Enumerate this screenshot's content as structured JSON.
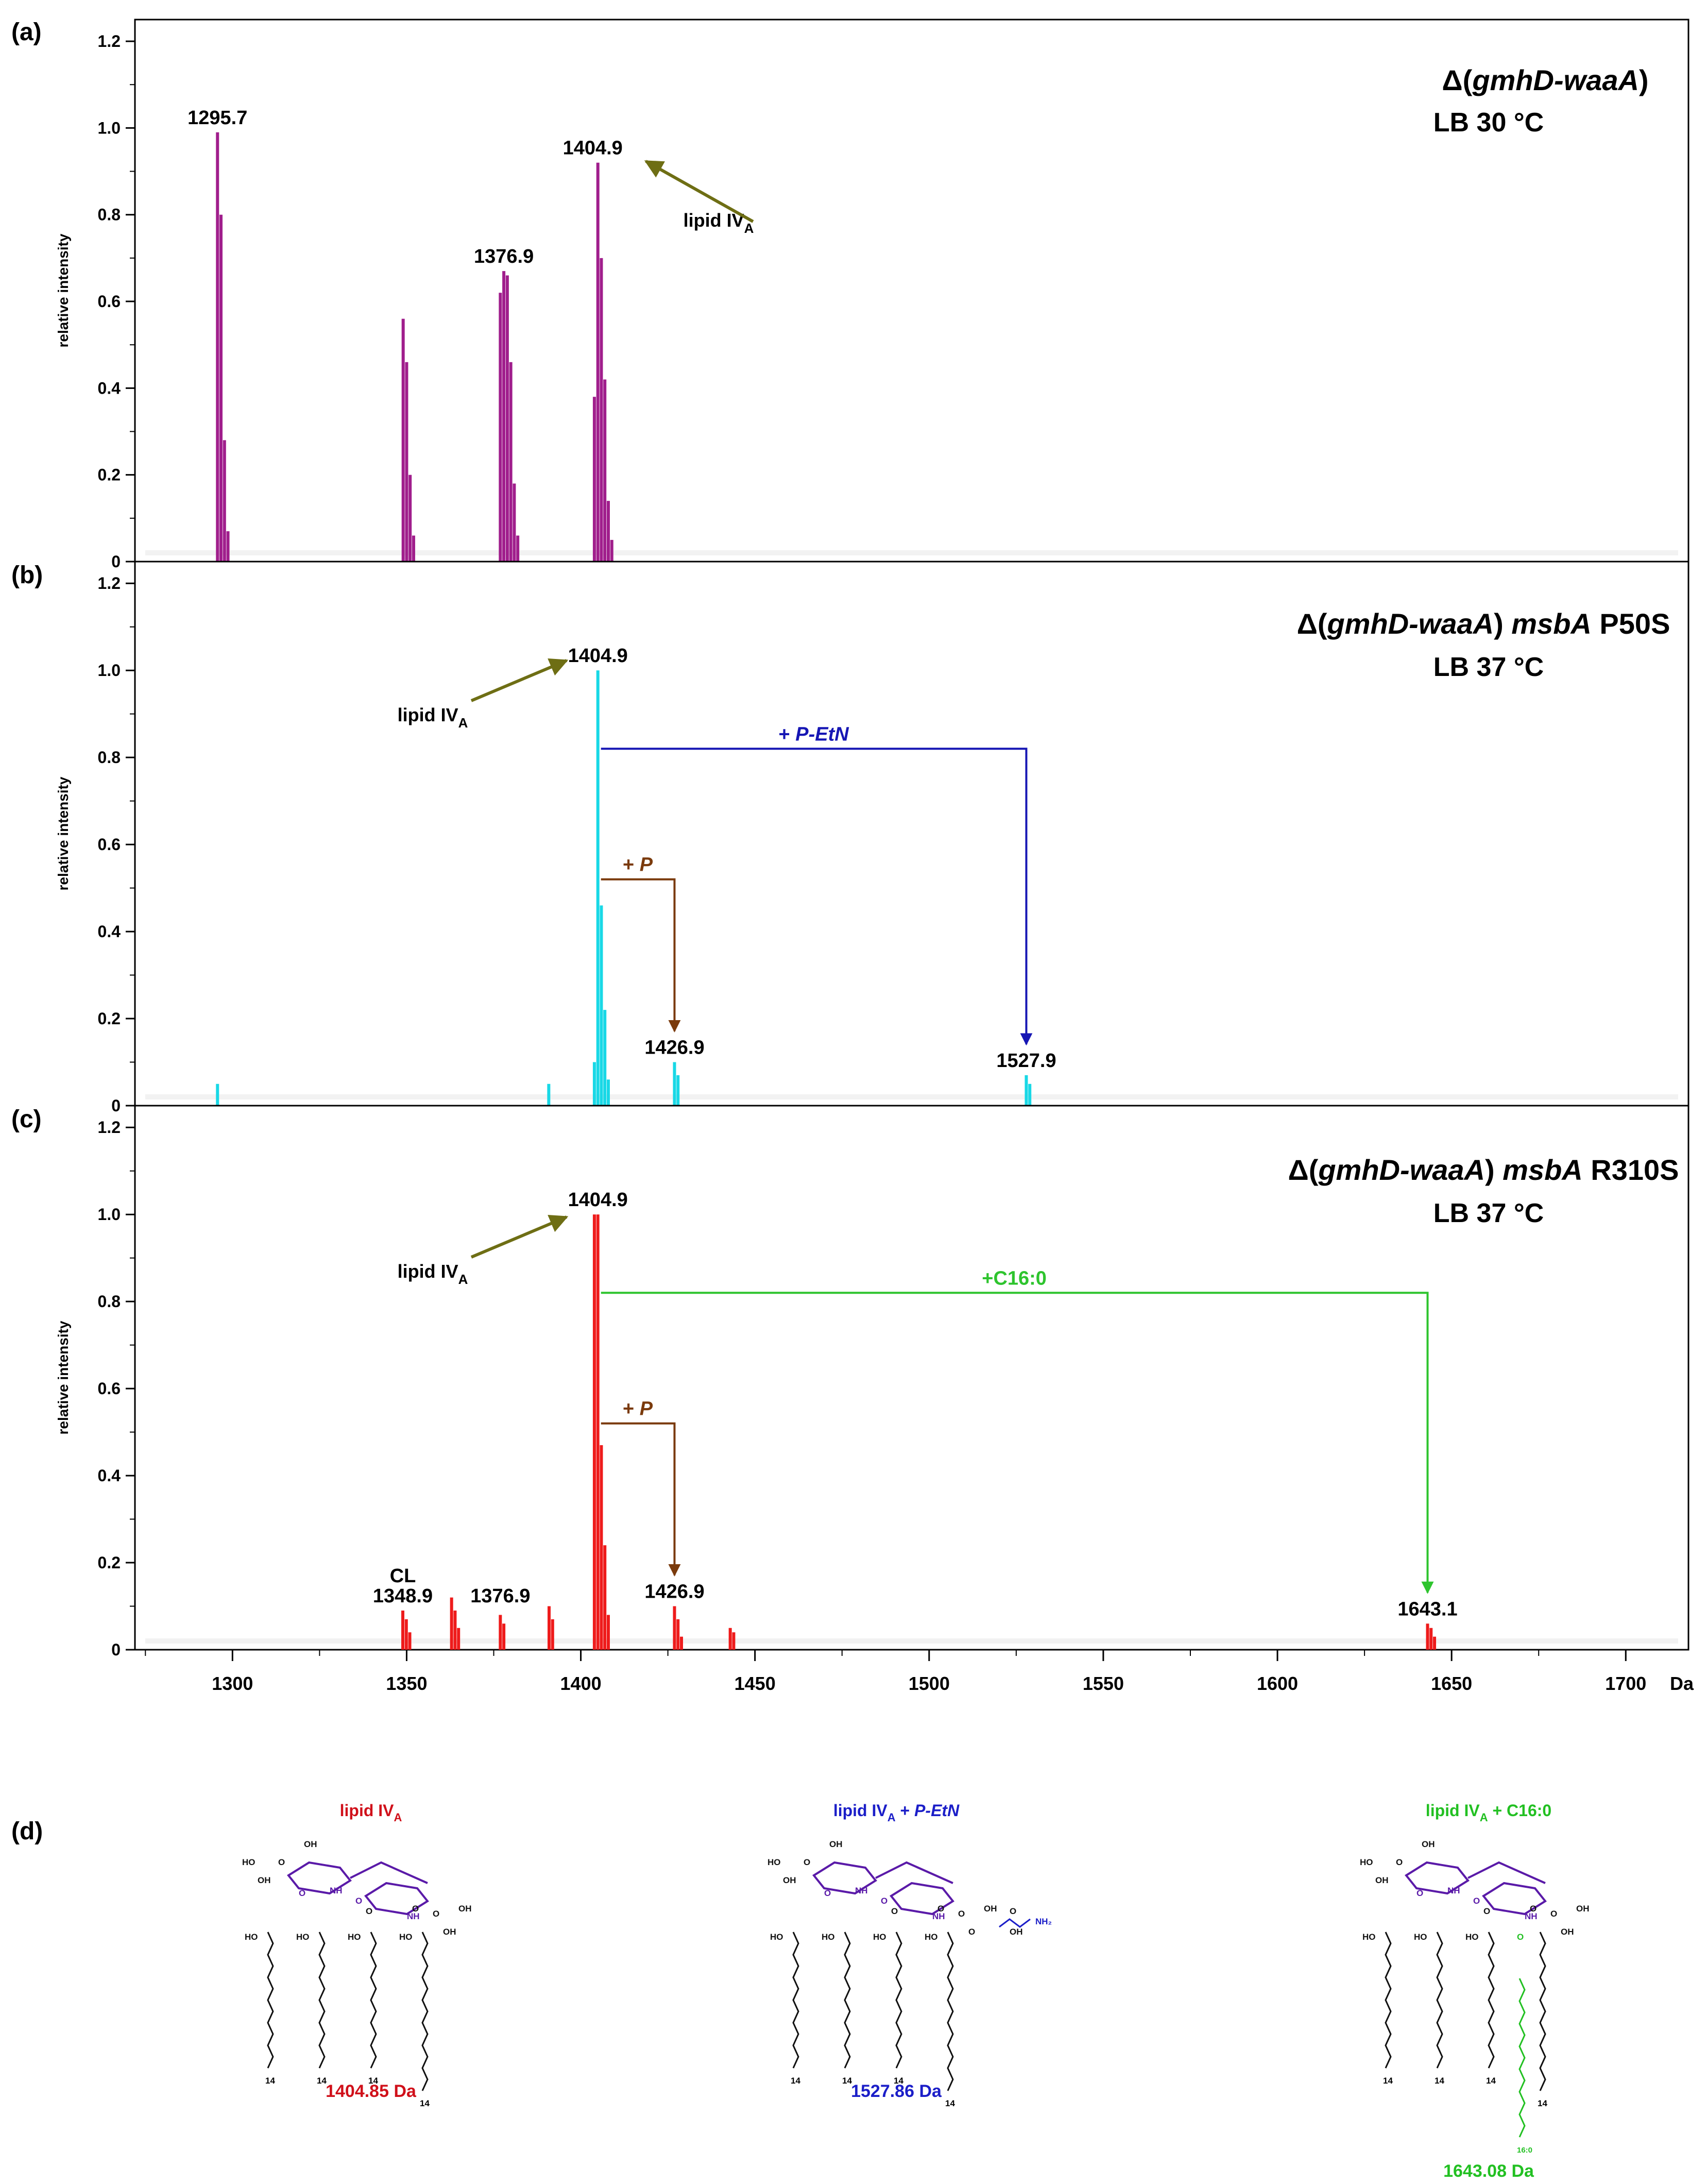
{
  "axis": {
    "ylabel": "relative intensity",
    "x_unit": "Da",
    "xlim": [
      1272,
      1718
    ],
    "ylim": [
      0,
      1.25
    ],
    "x_ticks": [
      1300,
      1350,
      1400,
      1450,
      1500,
      1550,
      1600,
      1650,
      1700
    ],
    "y_ticks": [
      0,
      0.2,
      0.4,
      0.6,
      0.8,
      1.0,
      1.2
    ],
    "y_tick_labels": [
      "0",
      "0.2",
      "0.4",
      "0.6",
      "0.8",
      "1.0",
      "1.2"
    ]
  },
  "chart_data": [
    {
      "type": "bar",
      "panel": "(a)",
      "title_parts": [
        "Δ(",
        "gmhD-waaA",
        ")"
      ],
      "subtitle": "LB 30 °C",
      "color": "#a01e8c",
      "peaks": [
        {
          "x": 1295.7,
          "y": 0.99
        },
        {
          "x": 1296.7,
          "y": 0.8
        },
        {
          "x": 1297.7,
          "y": 0.28
        },
        {
          "x": 1298.7,
          "y": 0.07
        },
        {
          "x": 1349.0,
          "y": 0.56
        },
        {
          "x": 1350.0,
          "y": 0.46
        },
        {
          "x": 1351.0,
          "y": 0.2
        },
        {
          "x": 1352.0,
          "y": 0.06
        },
        {
          "x": 1376.9,
          "y": 0.62
        },
        {
          "x": 1377.9,
          "y": 0.67
        },
        {
          "x": 1378.9,
          "y": 0.66
        },
        {
          "x": 1379.9,
          "y": 0.46
        },
        {
          "x": 1380.9,
          "y": 0.18
        },
        {
          "x": 1381.9,
          "y": 0.06
        },
        {
          "x": 1403.9,
          "y": 0.38
        },
        {
          "x": 1404.9,
          "y": 0.92
        },
        {
          "x": 1405.9,
          "y": 0.7
        },
        {
          "x": 1406.9,
          "y": 0.42
        },
        {
          "x": 1407.9,
          "y": 0.14
        },
        {
          "x": 1408.9,
          "y": 0.05
        }
      ],
      "labels": [
        {
          "text": "1295.7",
          "x": 1295.7,
          "y": 0.99
        },
        {
          "text": "1376.9",
          "x": 1377.9,
          "y": 0.67
        },
        {
          "text": "1404.9",
          "x": 1404.9,
          "y": 0.92
        }
      ],
      "annotations": [
        {
          "text": "lipid IV",
          "sub": "A",
          "x": 1404.9
        }
      ],
      "brackets": []
    },
    {
      "type": "bar",
      "panel": "(b)",
      "title_parts": [
        "Δ(",
        "gmhD-waaA",
        ") ",
        "msbA",
        " P50S"
      ],
      "subtitle": "LB 37 °C",
      "color": "#18d8e6",
      "peaks": [
        {
          "x": 1295.7,
          "y": 0.05
        },
        {
          "x": 1390.8,
          "y": 0.05
        },
        {
          "x": 1403.9,
          "y": 0.1
        },
        {
          "x": 1404.9,
          "y": 1.0
        },
        {
          "x": 1405.9,
          "y": 0.46
        },
        {
          "x": 1406.9,
          "y": 0.22
        },
        {
          "x": 1407.9,
          "y": 0.06
        },
        {
          "x": 1426.9,
          "y": 0.1
        },
        {
          "x": 1427.9,
          "y": 0.07
        },
        {
          "x": 1527.9,
          "y": 0.07
        },
        {
          "x": 1528.9,
          "y": 0.05
        }
      ],
      "labels": [
        {
          "text": "1404.9",
          "x": 1404.9,
          "y": 1.0
        },
        {
          "text": "1426.9",
          "x": 1426.9,
          "y": 0.1
        },
        {
          "text": "1527.9",
          "x": 1527.9,
          "y": 0.07
        }
      ],
      "annotations": [
        {
          "text": "lipid IV",
          "sub": "A",
          "x": 1404.9
        }
      ],
      "brackets": [
        {
          "from": 1404.9,
          "to": 1527.9,
          "y": 0.82,
          "label": "+ P-EtN",
          "label_italic": true,
          "color": "#1616b4"
        },
        {
          "from": 1404.9,
          "to": 1426.9,
          "y": 0.52,
          "label": "+ P",
          "label_italic": true,
          "color": "#7a3a0c"
        }
      ]
    },
    {
      "type": "bar",
      "panel": "(c)",
      "title_parts": [
        "Δ(",
        "gmhD-waaA",
        ") ",
        "msbA",
        " R310S"
      ],
      "subtitle": "LB 37 °C",
      "color": "#ee1b1b",
      "peaks": [
        {
          "x": 1348.9,
          "y": 0.09
        },
        {
          "x": 1349.9,
          "y": 0.07
        },
        {
          "x": 1350.9,
          "y": 0.04
        },
        {
          "x": 1362.9,
          "y": 0.12
        },
        {
          "x": 1363.9,
          "y": 0.09
        },
        {
          "x": 1364.9,
          "y": 0.05
        },
        {
          "x": 1376.9,
          "y": 0.08
        },
        {
          "x": 1377.9,
          "y": 0.06
        },
        {
          "x": 1390.9,
          "y": 0.1
        },
        {
          "x": 1391.9,
          "y": 0.07
        },
        {
          "x": 1403.9,
          "y": 1.0
        },
        {
          "x": 1404.9,
          "y": 1.0
        },
        {
          "x": 1405.9,
          "y": 0.47
        },
        {
          "x": 1406.9,
          "y": 0.24
        },
        {
          "x": 1407.9,
          "y": 0.08
        },
        {
          "x": 1426.9,
          "y": 0.1
        },
        {
          "x": 1427.9,
          "y": 0.07
        },
        {
          "x": 1428.9,
          "y": 0.03
        },
        {
          "x": 1442.9,
          "y": 0.05
        },
        {
          "x": 1443.9,
          "y": 0.04
        },
        {
          "x": 1643.1,
          "y": 0.06
        },
        {
          "x": 1644.1,
          "y": 0.05
        },
        {
          "x": 1645.1,
          "y": 0.03
        }
      ],
      "labels": [
        {
          "text": "CL",
          "x": 1348.9,
          "y": 0.155
        },
        {
          "text": "1348.9",
          "x": 1348.9,
          "y": 0.09
        },
        {
          "text": "1376.9",
          "x": 1376.9,
          "y": 0.09
        },
        {
          "text": "1404.9",
          "x": 1404.9,
          "y": 1.0
        },
        {
          "text": "1426.9",
          "x": 1426.9,
          "y": 0.1
        },
        {
          "text": "1643.1",
          "x": 1643.1,
          "y": 0.06
        }
      ],
      "annotations": [
        {
          "text": "lipid IV",
          "sub": "A",
          "x": 1404.9
        }
      ],
      "brackets": [
        {
          "from": 1404.9,
          "to": 1643.1,
          "y": 0.82,
          "label": "+C16:0",
          "label_italic": false,
          "color": "#2ec42e"
        },
        {
          "from": 1404.9,
          "to": 1426.9,
          "y": 0.52,
          "label": "+ P",
          "label_italic": true,
          "color": "#7a3a0c"
        }
      ]
    }
  ],
  "panel_d": {
    "label": "(d)",
    "structures": [
      {
        "title_color": "#d0101a",
        "title": "lipid IV",
        "title_sub": "A",
        "title_suffix": "",
        "mass": "1404.85 Da",
        "mass_color": "#d0101a",
        "head_labels": [
          "HO",
          "O",
          "OH",
          "OH",
          "NH",
          "O",
          "O",
          "NH",
          "O",
          "O",
          "O",
          "OH",
          "OH"
        ],
        "chain_labels": [
          "HO",
          "HO",
          "HO",
          "HO",
          "14",
          "14",
          "14",
          "14"
        ],
        "extras": []
      },
      {
        "title_color": "#1b1ec8",
        "title": "lipid IV",
        "title_sub": "A",
        "title_suffix": " + P-EtN",
        "mass": "1527.86 Da",
        "mass_color": "#1b1ec8",
        "head_labels": [
          "HO",
          "O",
          "OH",
          "OH",
          "NH",
          "O",
          "O",
          "NH",
          "O",
          "O",
          "O",
          "OH",
          "O",
          "O",
          "OH"
        ],
        "chain_labels": [
          "HO",
          "HO",
          "HO",
          "HO",
          "14",
          "14",
          "14",
          "14"
        ],
        "extras": [
          "NH₂"
        ]
      },
      {
        "title_color": "#22c022",
        "title": "lipid IV",
        "title_sub": "A",
        "title_suffix": " + C16:0",
        "mass": "1643.08 Da",
        "mass_color": "#22c022",
        "head_labels": [
          "HO",
          "O",
          "OH",
          "OH",
          "NH",
          "O",
          "O",
          "NH",
          "O",
          "O",
          "O",
          "OH",
          "OH"
        ],
        "chain_labels": [
          "HO",
          "HO",
          "HO",
          "O",
          "14",
          "14",
          "14",
          "14"
        ],
        "extras": [
          "16:0"
        ]
      }
    ]
  }
}
